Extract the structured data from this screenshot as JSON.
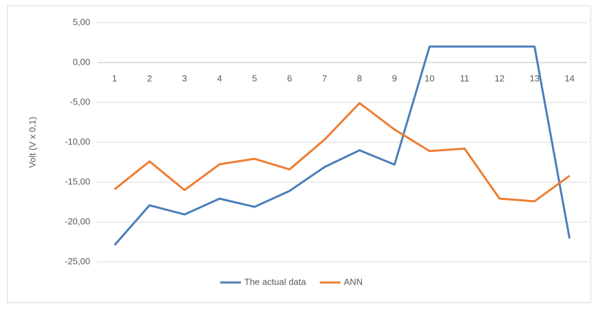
{
  "chart_data": {
    "type": "line",
    "y_label": "Volt (V x 0,1)",
    "categories": [
      "1",
      "2",
      "3",
      "4",
      "5",
      "6",
      "7",
      "8",
      "9",
      "10",
      "11",
      "12",
      "13",
      "14"
    ],
    "series": [
      {
        "name": "The actual data",
        "color": "#4a7ebb",
        "values": [
          -22.9,
          -17.9,
          -19.05,
          -17.07,
          -18.1,
          -16.1,
          -13.1,
          -11.0,
          -12.8,
          2.0,
          2.0,
          2.0,
          2.0,
          -22.07
        ]
      },
      {
        "name": "ANN",
        "color": "#ed7d31",
        "values": [
          -15.9,
          -12.4,
          -16.0,
          -12.76,
          -12.07,
          -13.4,
          -9.66,
          -5.09,
          -8.4,
          -11.1,
          -10.8,
          -17.07,
          -17.4,
          -14.2
        ]
      }
    ],
    "ylim": [
      -25,
      5
    ],
    "yticks": [
      {
        "value": 5,
        "label": "5,00"
      },
      {
        "value": 0,
        "label": "0,00"
      },
      {
        "value": -5,
        "label": "-5,00"
      },
      {
        "value": -10,
        "label": "-10,00"
      },
      {
        "value": -15,
        "label": "-15,00"
      },
      {
        "value": -20,
        "label": "-20,00"
      },
      {
        "value": -25,
        "label": "-25,00"
      }
    ],
    "grid": true,
    "legend": "bottom"
  }
}
